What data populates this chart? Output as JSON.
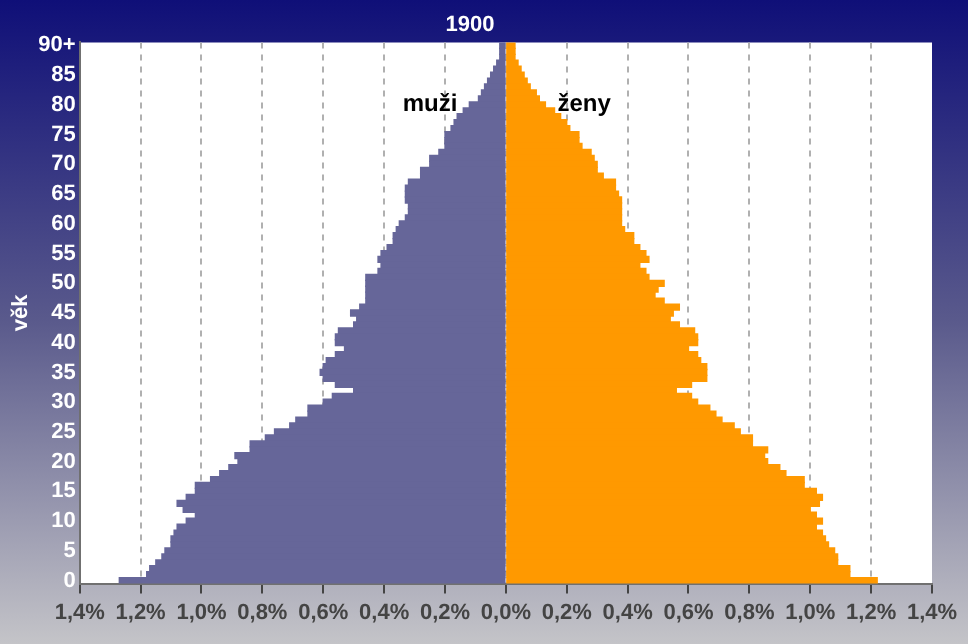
{
  "chart_data": {
    "type": "bar",
    "orientation": "horizontal",
    "stacked": true,
    "title": "1900",
    "ylabel": "věk",
    "categories": [
      "90+",
      null,
      null,
      null,
      null,
      "85",
      null,
      null,
      null,
      null,
      "80",
      null,
      null,
      null,
      null,
      "75",
      null,
      null,
      null,
      null,
      "70",
      null,
      null,
      null,
      null,
      "65",
      null,
      null,
      null,
      null,
      "60",
      null,
      null,
      null,
      null,
      "55",
      null,
      null,
      null,
      null,
      "50",
      null,
      null,
      null,
      null,
      "45",
      null,
      null,
      null,
      null,
      "40",
      null,
      null,
      null,
      null,
      "35",
      null,
      null,
      null,
      null,
      "30",
      null,
      null,
      null,
      null,
      "25",
      null,
      null,
      null,
      null,
      "20",
      null,
      null,
      null,
      null,
      "15",
      null,
      null,
      null,
      null,
      "10",
      null,
      null,
      null,
      null,
      "5",
      null,
      null,
      null,
      null,
      "0"
    ],
    "series": [
      {
        "name": "muži",
        "color": "#666699",
        "values": [
          -0.02,
          -0.02,
          -0.02,
          -0.03,
          -0.04,
          -0.05,
          -0.06,
          -0.07,
          -0.08,
          -0.09,
          -0.12,
          -0.14,
          -0.16,
          -0.17,
          -0.18,
          -0.2,
          -0.2,
          -0.2,
          -0.22,
          -0.25,
          -0.25,
          -0.28,
          -0.28,
          -0.32,
          -0.33,
          -0.33,
          -0.33,
          -0.32,
          -0.32,
          -0.33,
          -0.35,
          -0.36,
          -0.37,
          -0.37,
          -0.39,
          -0.41,
          -0.42,
          -0.41,
          -0.42,
          -0.46,
          -0.46,
          -0.46,
          -0.46,
          -0.46,
          -0.48,
          -0.51,
          -0.49,
          -0.5,
          -0.55,
          -0.56,
          -0.56,
          -0.53,
          -0.56,
          -0.59,
          -0.6,
          -0.61,
          -0.6,
          -0.56,
          -0.5,
          -0.57,
          -0.6,
          -0.65,
          -0.65,
          -0.69,
          -0.71,
          -0.76,
          -0.79,
          -0.84,
          -0.84,
          -0.89,
          -0.88,
          -0.91,
          -0.94,
          -0.97,
          -1.02,
          -1.02,
          -1.05,
          -1.08,
          -1.06,
          -1.02,
          -1.05,
          -1.08,
          -1.09,
          -1.1,
          -1.1,
          -1.12,
          -1.13,
          -1.15,
          -1.17,
          -1.18,
          -1.27
        ]
      },
      {
        "name": "ženy",
        "color": "#ff9900",
        "values": [
          0.03,
          0.03,
          0.03,
          0.04,
          0.05,
          0.06,
          0.07,
          0.08,
          0.1,
          0.11,
          0.13,
          0.16,
          0.18,
          0.2,
          0.21,
          0.24,
          0.24,
          0.25,
          0.28,
          0.29,
          0.3,
          0.3,
          0.32,
          0.36,
          0.36,
          0.37,
          0.38,
          0.38,
          0.38,
          0.38,
          0.38,
          0.39,
          0.42,
          0.42,
          0.44,
          0.46,
          0.47,
          0.44,
          0.46,
          0.47,
          0.52,
          0.5,
          0.49,
          0.52,
          0.57,
          0.55,
          0.54,
          0.57,
          0.62,
          0.63,
          0.63,
          0.6,
          0.63,
          0.64,
          0.66,
          0.66,
          0.66,
          0.61,
          0.56,
          0.61,
          0.63,
          0.67,
          0.69,
          0.71,
          0.75,
          0.77,
          0.81,
          0.81,
          0.86,
          0.85,
          0.86,
          0.9,
          0.92,
          0.98,
          0.98,
          1.02,
          1.04,
          1.03,
          1.0,
          1.02,
          1.04,
          1.02,
          1.04,
          1.05,
          1.06,
          1.08,
          1.09,
          1.09,
          1.13,
          1.13,
          1.22
        ]
      }
    ],
    "xlim": [
      -1.4,
      1.4
    ],
    "xticks": [
      {
        "value": -1.4,
        "label": "1,4%"
      },
      {
        "value": -1.2,
        "label": "1,2%"
      },
      {
        "value": -1,
        "label": "1,0%"
      },
      {
        "value": -0.8,
        "label": "0,8%"
      },
      {
        "value": -0.6,
        "label": "0,6%"
      },
      {
        "value": -0.4,
        "label": "0,4%"
      },
      {
        "value": -0.2,
        "label": "0,2%"
      },
      {
        "value": 0,
        "label": "0,0%"
      },
      {
        "value": 0.2,
        "label": "0,2%"
      },
      {
        "value": 0.4,
        "label": "0,4%"
      },
      {
        "value": 0.6,
        "label": "0,6%"
      },
      {
        "value": 0.8,
        "label": "0,8%"
      },
      {
        "value": 1,
        "label": "1,0%"
      },
      {
        "value": 1.2,
        "label": "1,2%"
      },
      {
        "value": 1.4,
        "label": "1,4%"
      }
    ],
    "grid": "x",
    "legend": false
  }
}
